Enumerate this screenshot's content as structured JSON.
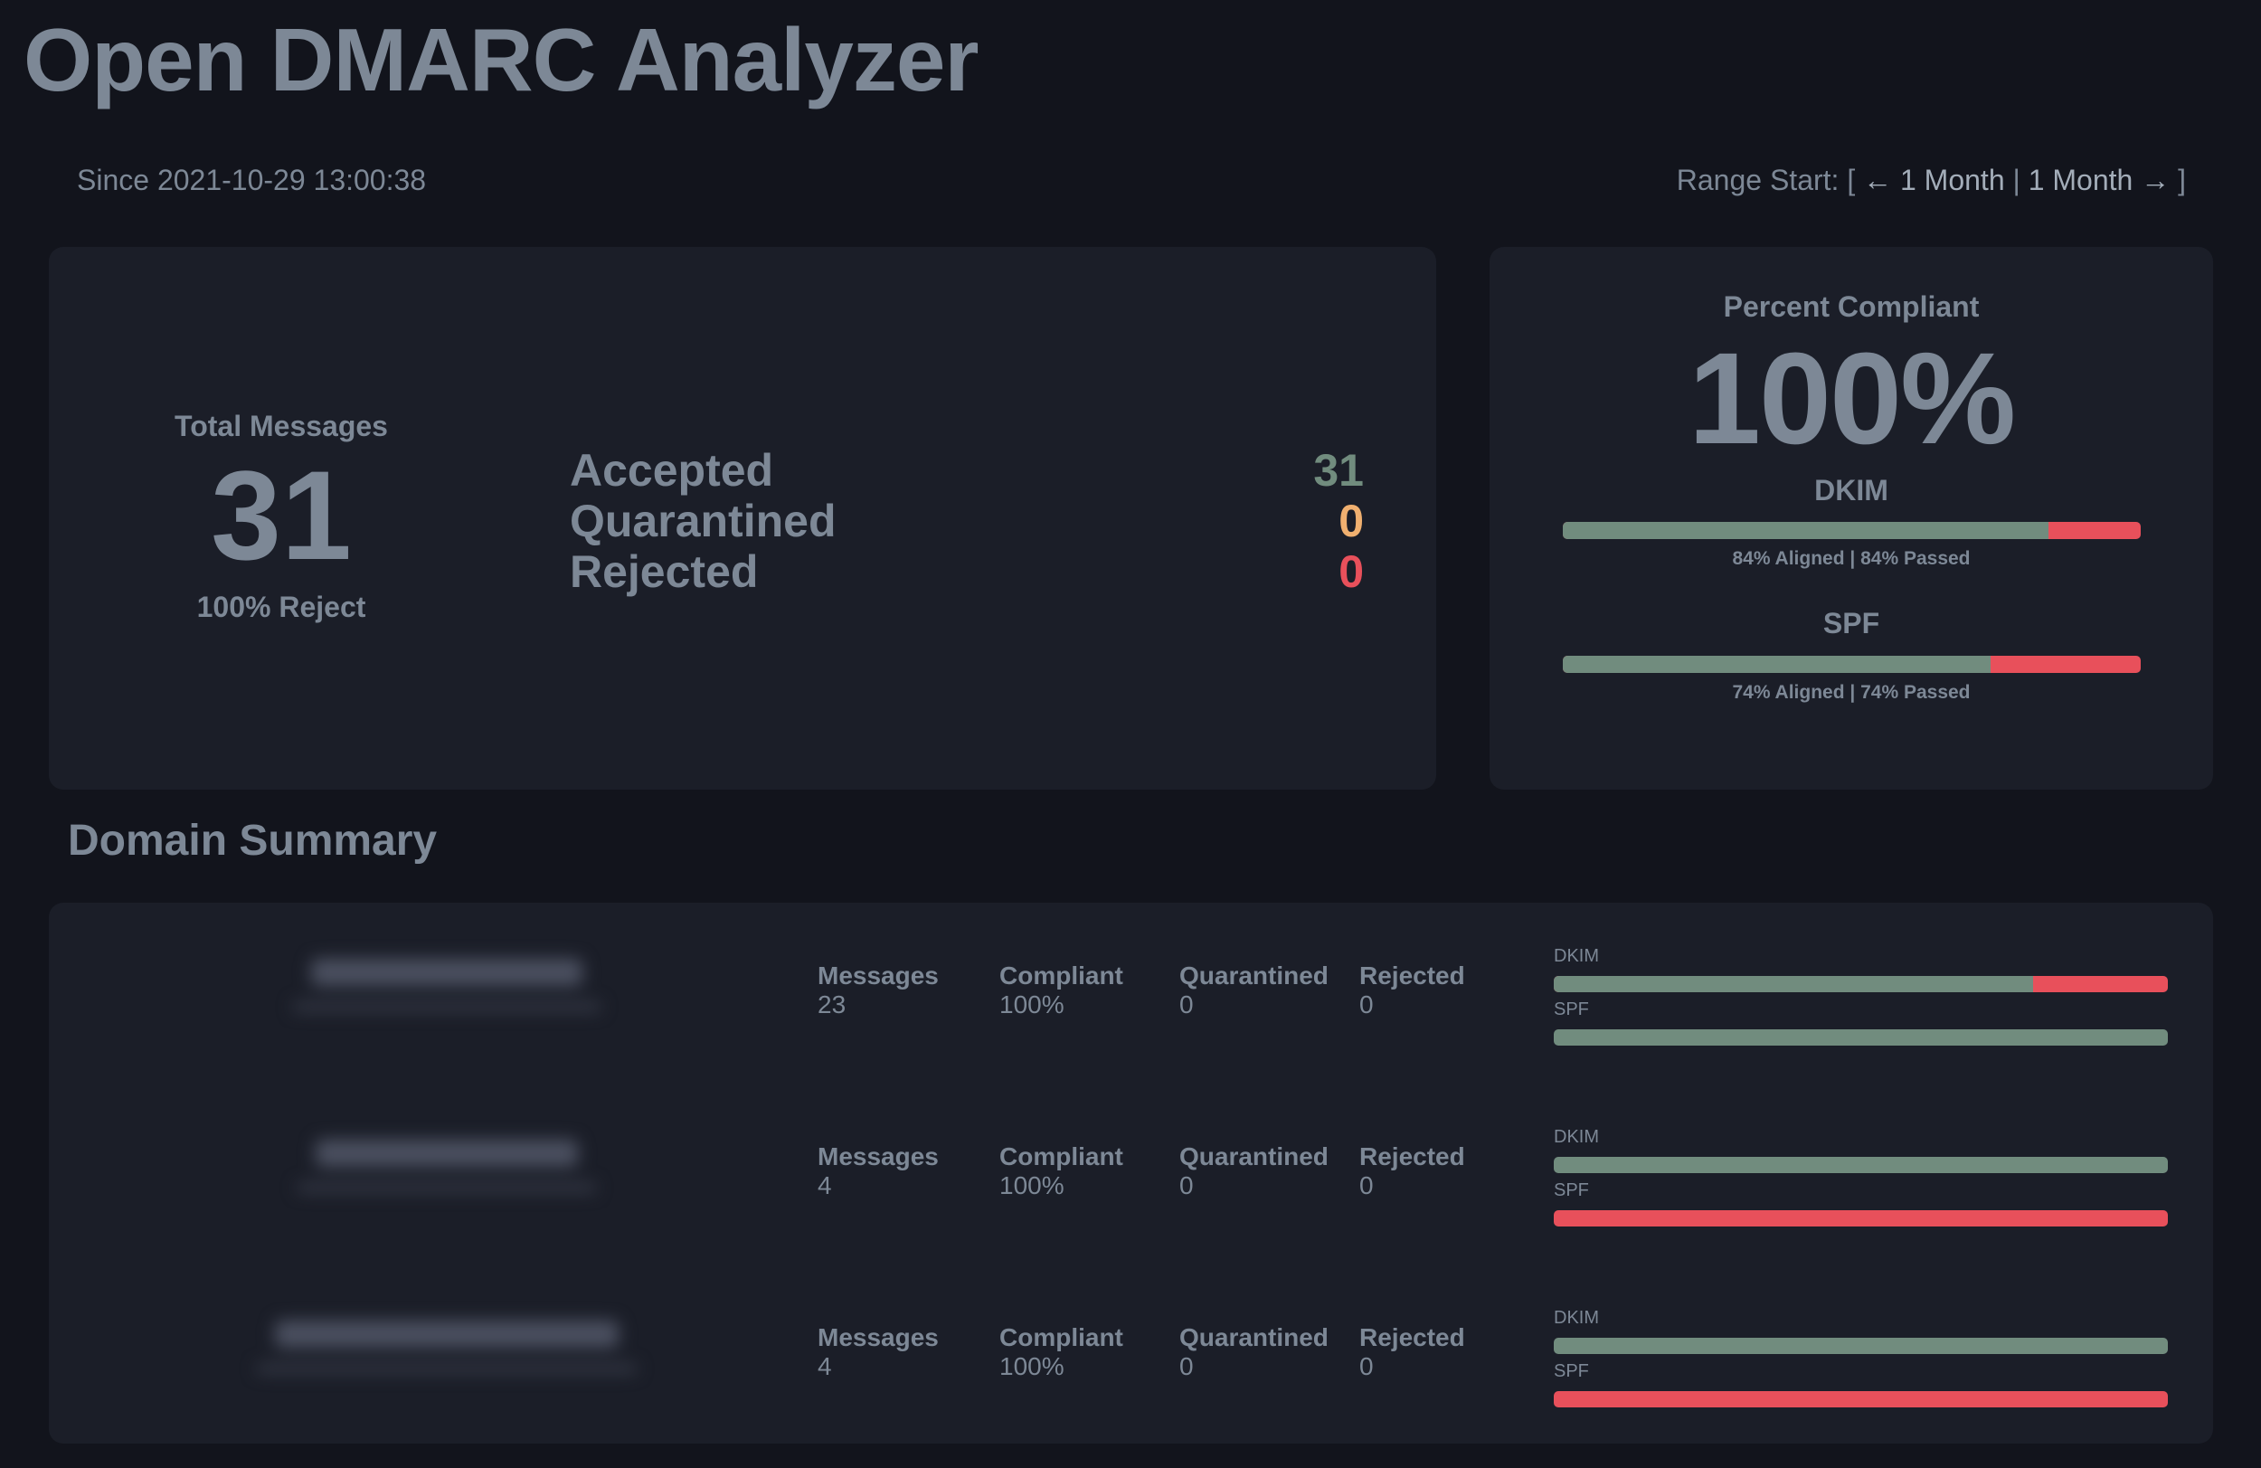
{
  "header": {
    "title": "Open DMARC Analyzer",
    "since": "Since 2021-10-29 13:00:38",
    "range": {
      "label": "Range Start: [",
      "prev": "← 1 Month",
      "separator": "|",
      "next": "1 Month →",
      "close": "]"
    }
  },
  "totals": {
    "total_label": "Total Messages",
    "total_value": "31",
    "policy": "100% Reject",
    "rows": [
      {
        "label": "Accepted",
        "value": "31",
        "color": "#718c7e"
      },
      {
        "label": "Quarantined",
        "value": "0",
        "color": "#f0b070"
      },
      {
        "label": "Rejected",
        "value": "0",
        "color": "#e8505b"
      }
    ]
  },
  "compliance": {
    "title": "Percent Compliant",
    "value": "100%",
    "dkim": {
      "label": "DKIM",
      "percent": 84,
      "caption": "84% Aligned | 84% Passed"
    },
    "spf": {
      "label": "SPF",
      "percent": 74,
      "caption": "74% Aligned | 74% Passed"
    }
  },
  "domain_summary": {
    "title": "Domain Summary",
    "columns": [
      "Messages",
      "Compliant",
      "Quarantined",
      "Rejected"
    ],
    "bar_labels": {
      "dkim": "DKIM",
      "spf": "SPF"
    },
    "rows": [
      {
        "messages": "23",
        "compliant": "100%",
        "quarantined": "0",
        "rejected": "0",
        "dkim_percent": 78,
        "spf_percent": 100
      },
      {
        "messages": "4",
        "compliant": "100%",
        "quarantined": "0",
        "rejected": "0",
        "dkim_percent": 100,
        "spf_percent": 0
      },
      {
        "messages": "4",
        "compliant": "100%",
        "quarantined": "0",
        "rejected": "0",
        "dkim_percent": 100,
        "spf_percent": 0
      }
    ]
  },
  "colors": {
    "pass": "#718c7e",
    "fail": "#e8505b",
    "warn": "#f0b070",
    "background": "#12141c",
    "card": "#1b1e28",
    "text": "#7d8896"
  }
}
